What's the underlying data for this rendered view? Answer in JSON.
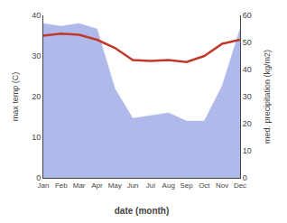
{
  "chart_data": {
    "type": "line",
    "categories": [
      "Jan",
      "Feb",
      "Mar",
      "Apr",
      "May",
      "Jun",
      "Jul",
      "Aug",
      "Sep",
      "Oct",
      "Nov",
      "Dec"
    ],
    "xlabel": "date (month)",
    "ylabel": "max temp (C)",
    "y2label": "med. precipitation (kg/m2)",
    "series": [
      {
        "type": "area",
        "axis": "y2",
        "color": "#b0baea",
        "values": [
          57,
          56,
          57,
          55,
          33,
          22,
          23,
          24,
          21,
          21,
          34,
          55
        ]
      },
      {
        "type": "line",
        "color": "#c0392b",
        "values": [
          35.0,
          35.5,
          35.2,
          34.0,
          32.0,
          29.0,
          28.8,
          29.0,
          28.5,
          30.0,
          33.0,
          34.0
        ]
      }
    ],
    "ylim": [
      0,
      40
    ],
    "yticks": [
      0,
      10,
      20,
      30,
      40
    ],
    "y2lim": [
      0,
      60
    ],
    "y2ticks": [
      0,
      10,
      20,
      30,
      40,
      50,
      60
    ],
    "grid": false
  }
}
